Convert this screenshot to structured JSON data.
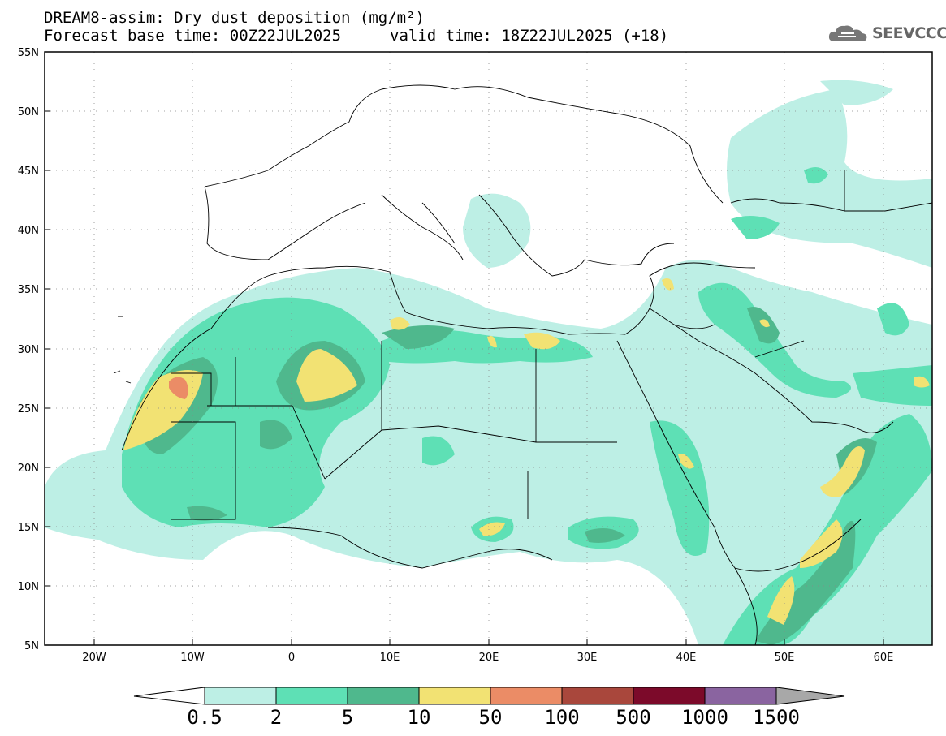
{
  "header": {
    "title_line1": "DREAM8-assim: Dry dust deposition (mg/m²)",
    "base_time": "Forecast base time: 00Z22JUL2025",
    "valid_time": "valid time: 18Z22JUL2025 (+18)",
    "logo_text": "SEEVCCC"
  },
  "map": {
    "lon_range": [
      -25,
      65
    ],
    "lat_range": [
      5,
      55
    ],
    "lat_labels": [
      "55N",
      "50N",
      "45N",
      "40N",
      "35N",
      "30N",
      "25N",
      "20N",
      "15N",
      "10N",
      "5N"
    ],
    "lon_labels": [
      "20W",
      "10W",
      "0",
      "10E",
      "20E",
      "30E",
      "40E",
      "50E",
      "60E"
    ]
  },
  "legend": {
    "labels": [
      "0.5",
      "2",
      "5",
      "10",
      "50",
      "100",
      "500",
      "1000",
      "1500"
    ],
    "colors": [
      "#bdefe5",
      "#5ee0b5",
      "#4fb88d",
      "#f2e273",
      "#eb8c66",
      "#a9473c",
      "#7c0a2a",
      "#8a64a0",
      "#a8a8a8"
    ]
  }
}
